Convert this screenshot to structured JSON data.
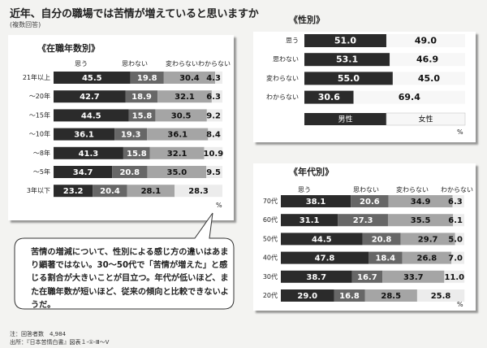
{
  "title": "近年、自分の職場では苦情が増えていると思いますか",
  "subtitle": "(複数回答)",
  "colors": {
    "omou": "#2b2b2b",
    "omowanai": "#676767",
    "kawaranai": "#a5a5a5",
    "wakaranai": "#ececec"
  },
  "chart_data": [
    {
      "type": "bar",
      "orientation": "horizontal-stacked-100",
      "title": "《在職年数別》",
      "legend": [
        "思う",
        "思わない",
        "変わらない",
        "わからない"
      ],
      "unit": "%",
      "categories": [
        "21年以上",
        "〜20年",
        "〜15年",
        "〜10年",
        "〜8年",
        "〜5年",
        "3年以下"
      ],
      "series": [
        {
          "name": "思う",
          "values": [
            45.5,
            42.7,
            44.5,
            36.1,
            41.3,
            34.7,
            23.2
          ]
        },
        {
          "name": "思わない",
          "values": [
            19.8,
            18.9,
            15.8,
            19.3,
            15.8,
            20.8,
            20.4
          ]
        },
        {
          "name": "変わらない",
          "values": [
            30.4,
            32.1,
            30.5,
            36.1,
            32.1,
            35.0,
            28.1
          ]
        },
        {
          "name": "わからない",
          "values": [
            4.3,
            6.3,
            9.2,
            8.4,
            10.9,
            9.5,
            28.3
          ]
        }
      ]
    },
    {
      "type": "bar",
      "orientation": "horizontal-stacked-100",
      "title": "《性別》",
      "unit": "%",
      "categories": [
        "思う",
        "思わない",
        "変わらない",
        "わからない"
      ],
      "series": [
        {
          "name": "男性",
          "values": [
            51.0,
            53.1,
            55.0,
            30.6
          ]
        },
        {
          "name": "女性",
          "values": [
            49.0,
            46.9,
            45.0,
            69.4
          ]
        }
      ]
    },
    {
      "type": "bar",
      "orientation": "horizontal-stacked-100",
      "title": "《年代別》",
      "legend": [
        "思う",
        "思わない",
        "変わらない",
        "わからない"
      ],
      "unit": "%",
      "categories": [
        "70代",
        "60代",
        "50代",
        "40代",
        "30代",
        "20代"
      ],
      "series": [
        {
          "name": "思う",
          "values": [
            38.1,
            31.1,
            44.5,
            47.8,
            38.7,
            29.0
          ]
        },
        {
          "name": "思わない",
          "values": [
            20.6,
            27.3,
            20.8,
            18.4,
            16.7,
            16.8
          ]
        },
        {
          "name": "変わらない",
          "values": [
            34.9,
            35.5,
            29.7,
            26.8,
            33.7,
            28.5
          ]
        },
        {
          "name": "わからない",
          "values": [
            6.3,
            6.1,
            5.0,
            7.0,
            11.0,
            25.8
          ]
        }
      ]
    }
  ],
  "callout": "苦情の増減について、性別による感じ方の違いはあまり顕著ではない。30〜50代で「苦情が増えた」と感じる割合が大きいことが目立つ。年代が低いほど、また在職年数が短いほど、従来の傾向と比較できないようだ。",
  "notes": [
    "注：回答者数　4,984",
    "出所：『日本苦情白書』図表１-①-Ⅲ〜Ⅴ"
  ]
}
